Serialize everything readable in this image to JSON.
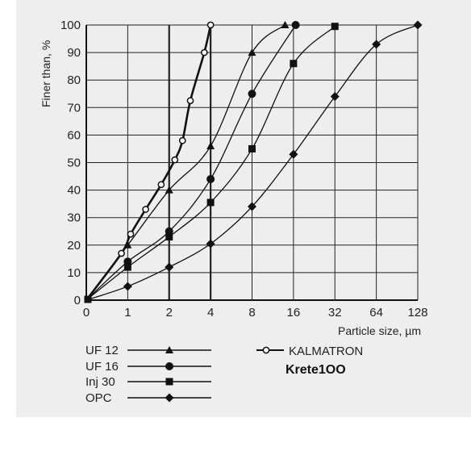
{
  "chart_data": {
    "type": "line",
    "xlabel": "Particle size, µm",
    "ylabel": "Finer than, %",
    "x_scale": "log2",
    "x_ticks": [
      "0",
      "1",
      "2",
      "4",
      "8",
      "16",
      "32",
      "64",
      "128"
    ],
    "y_ticks": [
      "0",
      "10",
      "20",
      "30",
      "40",
      "50",
      "60",
      "70",
      "80",
      "90",
      "100"
    ],
    "xlim": [
      0.5,
      128
    ],
    "ylim": [
      0,
      100
    ],
    "grid": true,
    "legend_position": "bottom",
    "series": [
      {
        "name": "UF 12",
        "marker": "triangle",
        "color": "#111111",
        "points": [
          [
            0.5,
            0
          ],
          [
            1,
            20
          ],
          [
            2,
            40
          ],
          [
            4,
            56
          ],
          [
            8,
            90
          ],
          [
            13.9,
            100
          ]
        ]
      },
      {
        "name": "UF 16",
        "marker": "circle",
        "color": "#111111",
        "points": [
          [
            0.5,
            0
          ],
          [
            1,
            14
          ],
          [
            2,
            25
          ],
          [
            4,
            44
          ],
          [
            8,
            75
          ],
          [
            16.6,
            100
          ]
        ]
      },
      {
        "name": "Inj 30",
        "marker": "square",
        "color": "#111111",
        "points": [
          [
            0.5,
            0
          ],
          [
            1,
            12
          ],
          [
            2,
            23
          ],
          [
            4,
            35.5
          ],
          [
            8,
            55
          ],
          [
            16,
            86
          ],
          [
            32,
            99.5
          ]
        ]
      },
      {
        "name": "OPC",
        "marker": "diamond",
        "color": "#111111",
        "points": [
          [
            0.5,
            0
          ],
          [
            1,
            5
          ],
          [
            2,
            12
          ],
          [
            4,
            20.5
          ],
          [
            8,
            34
          ],
          [
            16,
            53
          ],
          [
            32,
            74
          ],
          [
            64,
            93
          ],
          [
            128,
            100
          ]
        ]
      },
      {
        "name": "KALMATRON",
        "marker": "open-circle",
        "color": "#111111",
        "bold": true,
        "points": [
          [
            0.5,
            0
          ],
          [
            0.9,
            17
          ],
          [
            1.05,
            24
          ],
          [
            1.35,
            33
          ],
          [
            1.75,
            42
          ],
          [
            2.2,
            51
          ],
          [
            2.5,
            58
          ],
          [
            2.85,
            72.5
          ],
          [
            3.6,
            90
          ],
          [
            4,
            100
          ]
        ]
      }
    ],
    "brand_label": "Krete100"
  },
  "legend": {
    "left": [
      "UF 12",
      "UF 16",
      "Inj 30",
      "OPC"
    ],
    "right": "KALMATRON",
    "brand": "Krete1OO"
  }
}
